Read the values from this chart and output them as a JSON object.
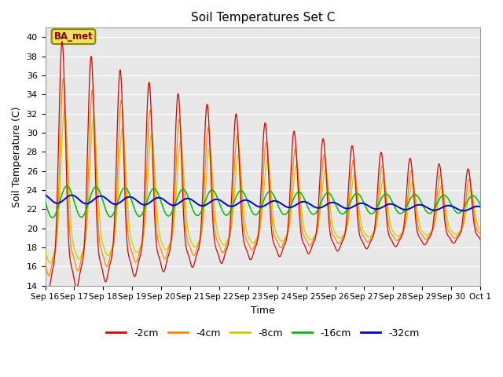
{
  "title": "Soil Temperatures Set C",
  "xlabel": "Time",
  "ylabel": "Soil Temperature (C)",
  "ylim": [
    14,
    41
  ],
  "yticks": [
    14,
    16,
    18,
    20,
    22,
    24,
    26,
    28,
    30,
    32,
    34,
    36,
    38,
    40
  ],
  "colors": {
    "d2cm": "#dd0000",
    "d4cm": "#ff8800",
    "d8cm": "#cccc00",
    "d16cm": "#00bb00",
    "d32cm": "#0000cc"
  },
  "legend_labels": [
    "-2cm",
    "-4cm",
    "-8cm",
    "-16cm",
    "-32cm"
  ],
  "annotation_text": "BA_met",
  "background_color": "#ffffff",
  "plot_bg_color": "#e8e8e8",
  "grid_color": "#ffffff",
  "n_days": 15,
  "ppd": 144,
  "x_tick_labels": [
    "Sep 16",
    "Sep 17",
    "Sep 18",
    "Sep 19",
    "Sep 20",
    "Sep 21",
    "Sep 22",
    "Sep 23",
    "Sep 24",
    "Sep 25",
    "Sep 26",
    "Sep 27",
    "Sep 28",
    "Sep 29",
    "Sep 30",
    "Oct 1"
  ]
}
